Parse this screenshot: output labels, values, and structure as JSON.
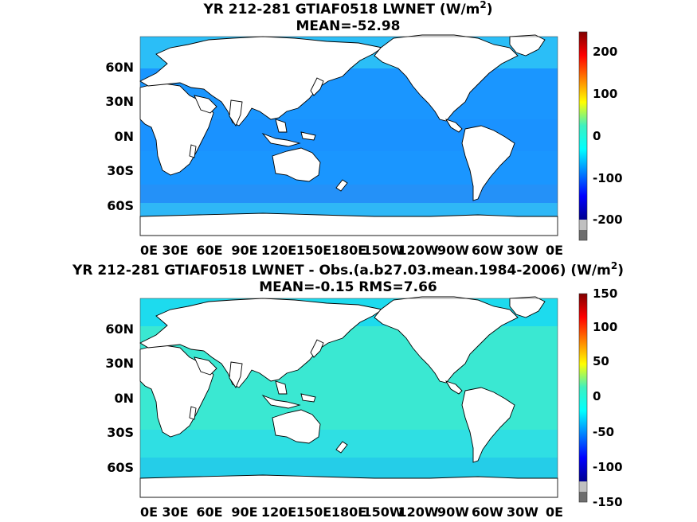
{
  "figure": {
    "panels": [
      {
        "title_main": "YR 212-281 GTIAF0518  LWNET (W/m",
        "title_sup": "2",
        "title_end": ")",
        "subtitle": "MEAN=-52.98",
        "colorbar_ticks": [
          "200",
          "100",
          "0",
          "-100",
          "-200"
        ],
        "colorbar_range": [
          -250,
          250
        ]
      },
      {
        "title_main": "YR 212-281 GTIAF0518 LWNET - Obs.(a.b27.03.mean.1984-2006) (W/m",
        "title_sup": "2",
        "title_end": ")",
        "subtitle": "MEAN=-0.15 RMS=7.66",
        "colorbar_ticks": [
          "150",
          "100",
          "50",
          "0",
          "-50",
          "-100",
          "-150"
        ],
        "colorbar_range": [
          -150,
          150
        ]
      }
    ],
    "lat_ticks": [
      "60N",
      "30N",
      "0N",
      "30S",
      "60S"
    ],
    "lon_ticks": [
      "0E",
      "30E",
      "60E",
      "90E",
      "120E",
      "150E",
      "180E",
      "150W",
      "120W",
      "90W",
      "60W",
      "30W",
      "0E"
    ],
    "colors": {
      "land": "#ffffff",
      "ocean_top_base": "#1a96ff",
      "ocean_top_north": "#2fc8f5",
      "ocean_top_south": "#2a8ef5",
      "ocean_bottom_base": "#3ae8d2",
      "ocean_bottom_north": "#19d8f3",
      "ocean_bottom_south": "#20c6ee"
    }
  }
}
